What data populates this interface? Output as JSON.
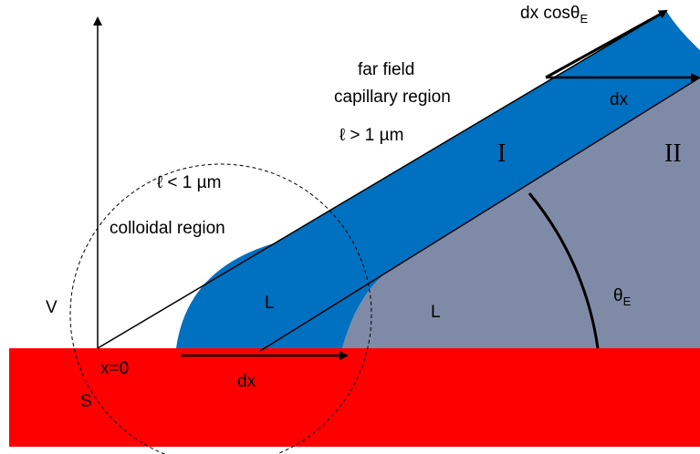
{
  "labels": {
    "top_arrow": {
      "text": "dx cosθ",
      "sub": "E"
    },
    "far_field": "far field",
    "capillary_region": "capillary region",
    "ell_gt": "ℓ > 1 µm",
    "region_one": "I",
    "region_two": "II",
    "ell_lt": "ℓ < 1 µm",
    "colloidal_region": "colloidal region",
    "dx_top": "dx",
    "vapor": "V",
    "liquid_left": "L",
    "liquid_right": "L",
    "angle": {
      "text": "θ",
      "sub": "E"
    },
    "origin": "x=0",
    "dx_bottom": "dx",
    "solid": "S"
  }
}
